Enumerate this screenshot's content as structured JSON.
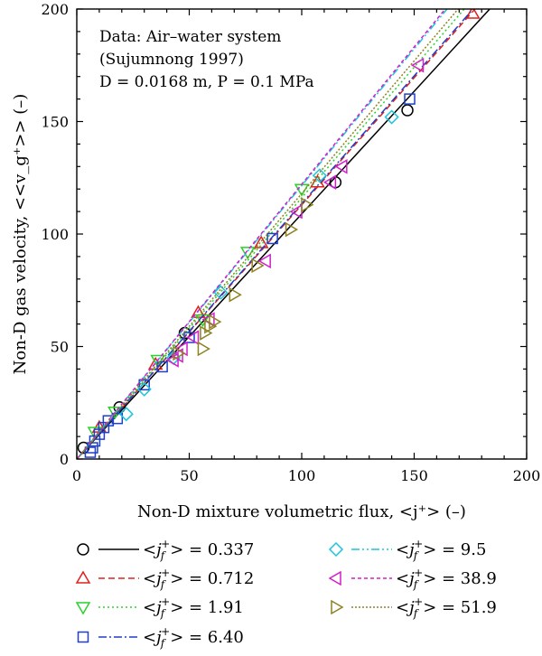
{
  "chart_data": {
    "type": "scatter",
    "xlabel": "Non-D mixture volumetric flux, <j⁺>  (–)",
    "ylabel": "Non-D gas velocity, <<v_g⁺>> (–)",
    "xlim": [
      0,
      200
    ],
    "ylim": [
      0,
      200
    ],
    "xticks": [
      "0",
      "50",
      "100",
      "150",
      "200"
    ],
    "yticks": [
      "0",
      "50",
      "100",
      "150",
      "200"
    ],
    "annotations": [
      "Data: Air–water system",
      "(Sujumnong 1997)",
      "D = 0.0168 m, P = 0.1 MPa"
    ],
    "grid": false,
    "legend_position": "below",
    "series": [
      {
        "name": "<j_f⁺> = 0.337",
        "color": "#000000",
        "marker": "circle",
        "line": "solid",
        "fit": [
          [
            0,
            0
          ],
          [
            190,
            207
          ]
        ],
        "points": [
          [
            3,
            5
          ],
          [
            19,
            23
          ],
          [
            48,
            56
          ],
          [
            115,
            123
          ],
          [
            147,
            155
          ]
        ]
      },
      {
        "name": "<j_f⁺> = 0.712",
        "color": "#e0201b",
        "marker": "triangle-up",
        "line": "dashed",
        "fit": [
          [
            0,
            0
          ],
          [
            185,
            209
          ]
        ],
        "points": [
          [
            10,
            14
          ],
          [
            35,
            42
          ],
          [
            54,
            65
          ],
          [
            82,
            96
          ],
          [
            107,
            123
          ],
          [
            176,
            198
          ]
        ]
      },
      {
        "name": "<j_f⁺> = 1.91",
        "color": "#2bd22b",
        "marker": "triangle-down",
        "line": "dotted",
        "fit": [
          [
            0,
            0
          ],
          [
            180,
            209
          ]
        ],
        "points": [
          [
            8,
            12
          ],
          [
            17,
            21
          ],
          [
            36,
            44
          ],
          [
            56,
            62
          ],
          [
            76,
            92
          ],
          [
            100,
            120
          ]
        ]
      },
      {
        "name": "<j_f⁺> = 6.40",
        "color": "#1f3fc9",
        "marker": "square",
        "line": "dashdot",
        "fit": [
          [
            0,
            0
          ],
          [
            185,
            210
          ]
        ],
        "points": [
          [
            6,
            3
          ],
          [
            7,
            5
          ],
          [
            8,
            8
          ],
          [
            10,
            11
          ],
          [
            12,
            14
          ],
          [
            14,
            17
          ],
          [
            18,
            18
          ],
          [
            30,
            33
          ],
          [
            38,
            41
          ],
          [
            50,
            54
          ],
          [
            87,
            98
          ],
          [
            148,
            160
          ]
        ]
      },
      {
        "name": "<j_f⁺> = 9.5",
        "color": "#19c6dc",
        "marker": "diamond",
        "line": "dashdotdot",
        "fit": [
          [
            0,
            0
          ],
          [
            172,
            209
          ]
        ],
        "points": [
          [
            22,
            20
          ],
          [
            30,
            31
          ],
          [
            43,
            45
          ],
          [
            64,
            74
          ],
          [
            108,
            126
          ],
          [
            140,
            152
          ]
        ]
      },
      {
        "name": "<j_f⁺> = 38.9",
        "color": "#d21fc9",
        "marker": "triangle-left",
        "line": "short-dashed",
        "fit": [
          [
            0,
            0
          ],
          [
            172,
            210
          ]
        ],
        "points": [
          [
            43,
            44
          ],
          [
            45,
            46
          ],
          [
            47,
            49
          ],
          [
            52,
            54
          ],
          [
            59,
            62
          ],
          [
            84,
            88
          ],
          [
            98,
            110
          ],
          [
            113,
            123
          ],
          [
            118,
            130
          ],
          [
            152,
            175
          ]
        ]
      },
      {
        "name": "<j_f⁺> = 51.9",
        "color": "#8c8220",
        "marker": "triangle-right",
        "line": "dense-dotted",
        "fit": [
          [
            0,
            0
          ],
          [
            178,
            210
          ]
        ],
        "points": [
          [
            45,
            47
          ],
          [
            56,
            49
          ],
          [
            57,
            56
          ],
          [
            59,
            59
          ],
          [
            61,
            61
          ],
          [
            70,
            73
          ],
          [
            80,
            86
          ],
          [
            95,
            102
          ],
          [
            102,
            113
          ]
        ]
      }
    ]
  },
  "legend": {
    "items": [
      {
        "prefix": "<",
        "j": "j",
        "sub": "f",
        "sup": "+",
        "suffix": "> = 0.337"
      },
      {
        "prefix": "<",
        "j": "j",
        "sub": "f",
        "sup": "+",
        "suffix": "> = 0.712"
      },
      {
        "prefix": "<",
        "j": "j",
        "sub": "f",
        "sup": "+",
        "suffix": "> = 1.91"
      },
      {
        "prefix": "<",
        "j": "j",
        "sub": "f",
        "sup": "+",
        "suffix": "> = 6.40"
      },
      {
        "prefix": "<",
        "j": "j",
        "sub": "f",
        "sup": "+",
        "suffix": "> = 9.5"
      },
      {
        "prefix": "<",
        "j": "j",
        "sub": "f",
        "sup": "+",
        "suffix": "> = 38.9"
      },
      {
        "prefix": "<",
        "j": "j",
        "sub": "f",
        "sup": "+",
        "suffix": "> = 51.9"
      }
    ]
  }
}
